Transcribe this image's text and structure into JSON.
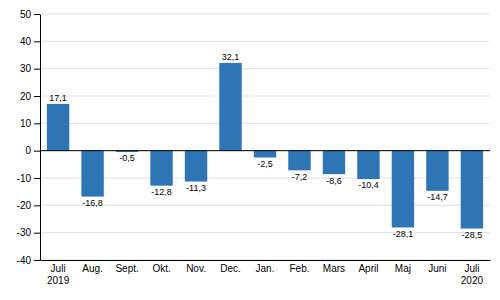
{
  "chart_data": {
    "type": "bar",
    "categories": [
      "Juli\n2019",
      "Aug.",
      "Sept.",
      "Okt.",
      "Nov.",
      "Dec.",
      "Jan.",
      "Feb.",
      "Mars",
      "April",
      "Maj",
      "Juni",
      "Juli\n2020"
    ],
    "values": [
      17.1,
      -16.8,
      -0.5,
      -12.8,
      -11.3,
      32.1,
      -2.5,
      -7.2,
      -8.6,
      -10.4,
      -28.1,
      -14.7,
      -28.5
    ],
    "value_labels": [
      "17,1",
      "-16,8",
      "-0,5",
      "-12,8",
      "-11,3",
      "32,1",
      "-2,5",
      "-7,2",
      "-8,6",
      "-10,4",
      "-28,1",
      "-14,7",
      "-28,5"
    ],
    "color": "#2e75b6",
    "ylim": [
      -40,
      50
    ],
    "yticks": [
      -40,
      -30,
      -20,
      -10,
      0,
      10,
      20,
      30,
      40,
      50
    ],
    "grid": true,
    "data_labels": true
  }
}
